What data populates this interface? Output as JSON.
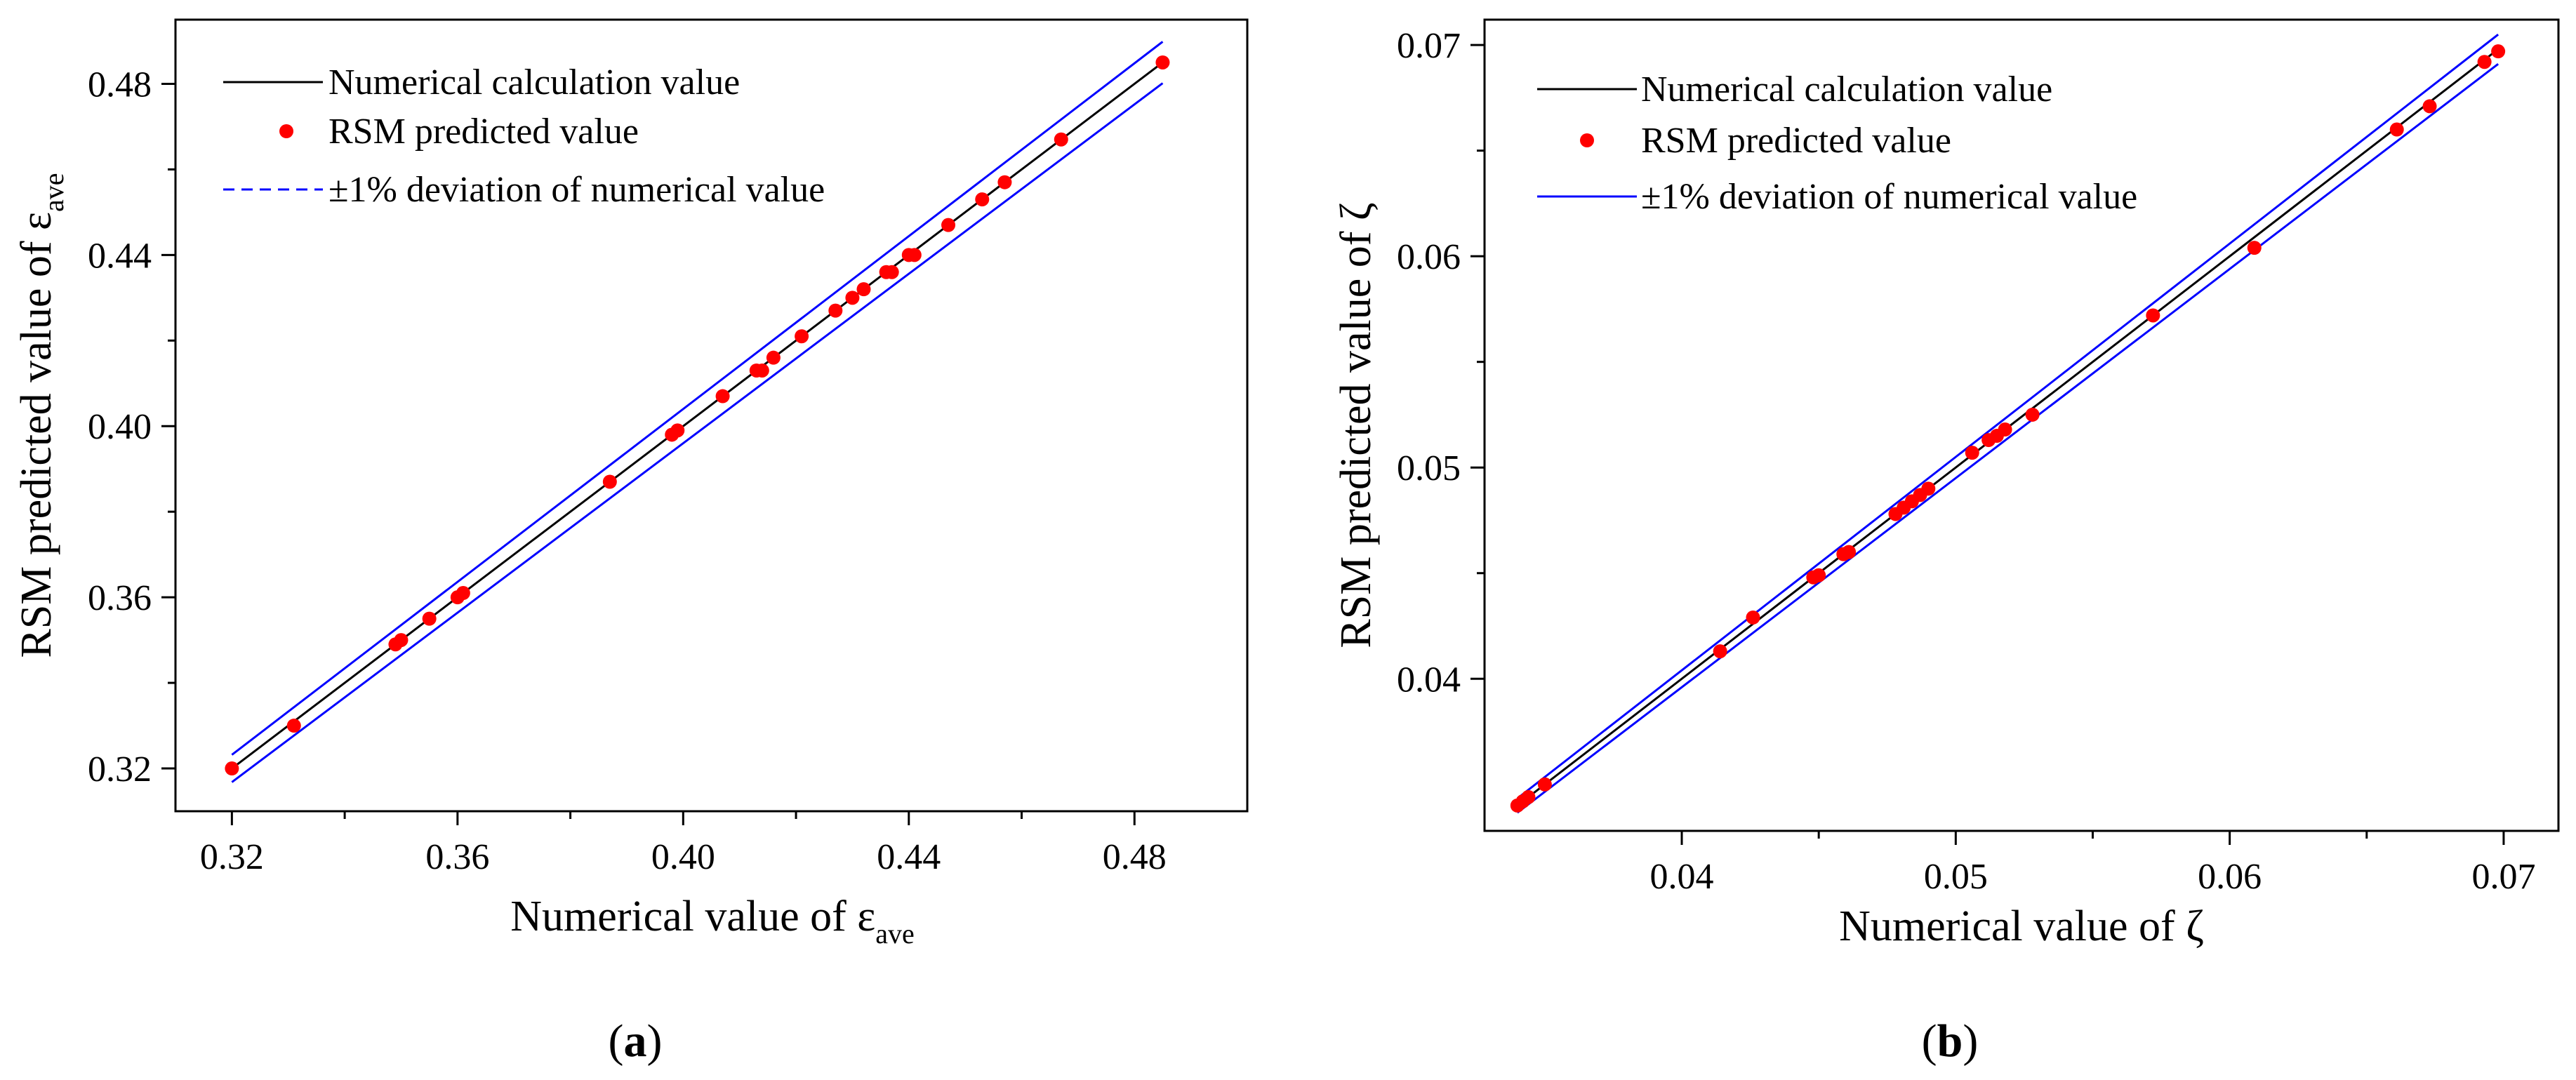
{
  "chart_data": [
    {
      "type": "scatter",
      "panel_label": "(a)",
      "xlabel": "Numerical value of ε",
      "xlabel_sub": "ave",
      "ylabel": "RSM predicted value of ε",
      "ylabel_sub": "ave",
      "xlim": [
        0.31,
        0.5
      ],
      "ylim": [
        0.31,
        0.495
      ],
      "xticks": [
        0.32,
        0.36,
        0.4,
        0.44,
        0.48
      ],
      "xtick_labels": [
        "0.32",
        "0.36",
        "0.40",
        "0.44",
        "0.48"
      ],
      "yticks": [
        0.32,
        0.36,
        0.4,
        0.44,
        0.48
      ],
      "ytick_labels": [
        "0.32",
        "0.36",
        "0.40",
        "0.44",
        "0.48"
      ],
      "legend_position": "top-left",
      "legend": [
        {
          "label": "Numerical calculation value",
          "style": "line",
          "color": "#000000"
        },
        {
          "label": "RSM predicted value",
          "style": "marker",
          "color": "#ff0000"
        },
        {
          "label": "±1% deviation of numerical value",
          "style": "dashed",
          "color": "#0000ff"
        }
      ],
      "ref_line": {
        "x": [
          0.32,
          0.485
        ],
        "y": [
          0.32,
          0.485
        ]
      },
      "deviation_pct": 1,
      "series": [
        {
          "name": "RSM predicted value",
          "x": [
            0.32,
            0.331,
            0.349,
            0.35,
            0.355,
            0.36,
            0.361,
            0.387,
            0.398,
            0.399,
            0.407,
            0.413,
            0.414,
            0.416,
            0.421,
            0.427,
            0.43,
            0.432,
            0.436,
            0.437,
            0.44,
            0.441,
            0.447,
            0.453,
            0.457,
            0.467,
            0.485
          ],
          "y": [
            0.32,
            0.33,
            0.349,
            0.35,
            0.355,
            0.36,
            0.361,
            0.387,
            0.398,
            0.399,
            0.407,
            0.413,
            0.413,
            0.416,
            0.421,
            0.427,
            0.43,
            0.432,
            0.436,
            0.436,
            0.44,
            0.44,
            0.447,
            0.453,
            0.457,
            0.467,
            0.485
          ]
        }
      ]
    },
    {
      "type": "scatter",
      "panel_label": "(b)",
      "xlabel": "Numerical value of ζ",
      "ylabel": "RSM predicted value of ζ",
      "xlim": [
        0.0328,
        0.072
      ],
      "ylim": [
        0.0328,
        0.0712
      ],
      "xticks": [
        0.04,
        0.05,
        0.06,
        0.07
      ],
      "xtick_labels": [
        "0.04",
        "0.05",
        "0.06",
        "0.07"
      ],
      "yticks": [
        0.04,
        0.05,
        0.06,
        0.07
      ],
      "ytick_labels": [
        "0.04",
        "0.05",
        "0.06",
        "0.07"
      ],
      "legend_position": "top-left",
      "legend": [
        {
          "label": "Numerical calculation value",
          "style": "line",
          "color": "#000000"
        },
        {
          "label": "RSM predicted value",
          "style": "marker",
          "color": "#ff0000"
        },
        {
          "label": "±1% deviation of numerical value",
          "style": "line",
          "color": "#0000ff"
        }
      ],
      "ref_line": {
        "x": [
          0.034,
          0.0698
        ],
        "y": [
          0.034,
          0.0698
        ]
      },
      "deviation_pct": 1,
      "series": [
        {
          "name": "RSM predicted value",
          "x": [
            0.034,
            0.0342,
            0.0344,
            0.035,
            0.0414,
            0.0426,
            0.0448,
            0.045,
            0.0459,
            0.0461,
            0.0478,
            0.0481,
            0.0484,
            0.0487,
            0.049,
            0.0506,
            0.0512,
            0.0515,
            0.0518,
            0.0528,
            0.0572,
            0.0609,
            0.0661,
            0.0673,
            0.0693,
            0.0698
          ],
          "y": [
            0.034,
            0.0342,
            0.0344,
            0.035,
            0.0413,
            0.0429,
            0.0448,
            0.0449,
            0.0459,
            0.046,
            0.0478,
            0.0481,
            0.0484,
            0.0487,
            0.049,
            0.0507,
            0.0513,
            0.0515,
            0.0518,
            0.0525,
            0.0572,
            0.0604,
            0.066,
            0.0671,
            0.0692,
            0.0697
          ]
        }
      ]
    }
  ]
}
